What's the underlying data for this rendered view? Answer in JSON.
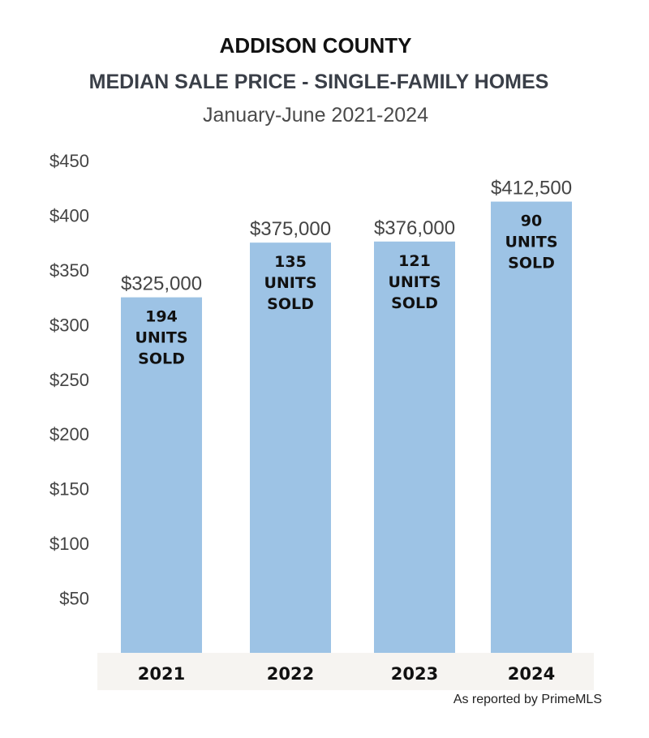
{
  "chart_data": {
    "type": "bar",
    "title": "ADDISON COUNTY",
    "subtitle": "MEDIAN SALE PRICE - SINGLE-FAMILY HOMES",
    "period": "January-June 2021-2024",
    "categories": [
      "2021",
      "2022",
      "2023",
      "2024"
    ],
    "values": [
      325000,
      375000,
      376000,
      412500
    ],
    "value_labels": [
      "$325,000",
      "$375,000",
      "$376,000",
      "$412,500"
    ],
    "units_sold": [
      194,
      135,
      121,
      90
    ],
    "units_labels": [
      [
        "194",
        "UNITS",
        "SOLD"
      ],
      [
        "135",
        "UNITS",
        "SOLD"
      ],
      [
        "121",
        "UNITS",
        "SOLD"
      ],
      [
        "90",
        "UNITS",
        "SOLD"
      ]
    ],
    "y_ticks": [
      "$50",
      "$100",
      "$150",
      "$200",
      "$250",
      "$300",
      "$350",
      "$400",
      "$450"
    ],
    "y_tick_values": [
      50,
      100,
      150,
      200,
      250,
      300,
      350,
      400,
      450
    ],
    "ylim": [
      0,
      450
    ],
    "y_unit_scale": 1000,
    "grid": false,
    "bar_color": "#9dc3e5",
    "category_band_color": "#f6f4f1"
  },
  "source_note": "As reported by PrimeMLS"
}
